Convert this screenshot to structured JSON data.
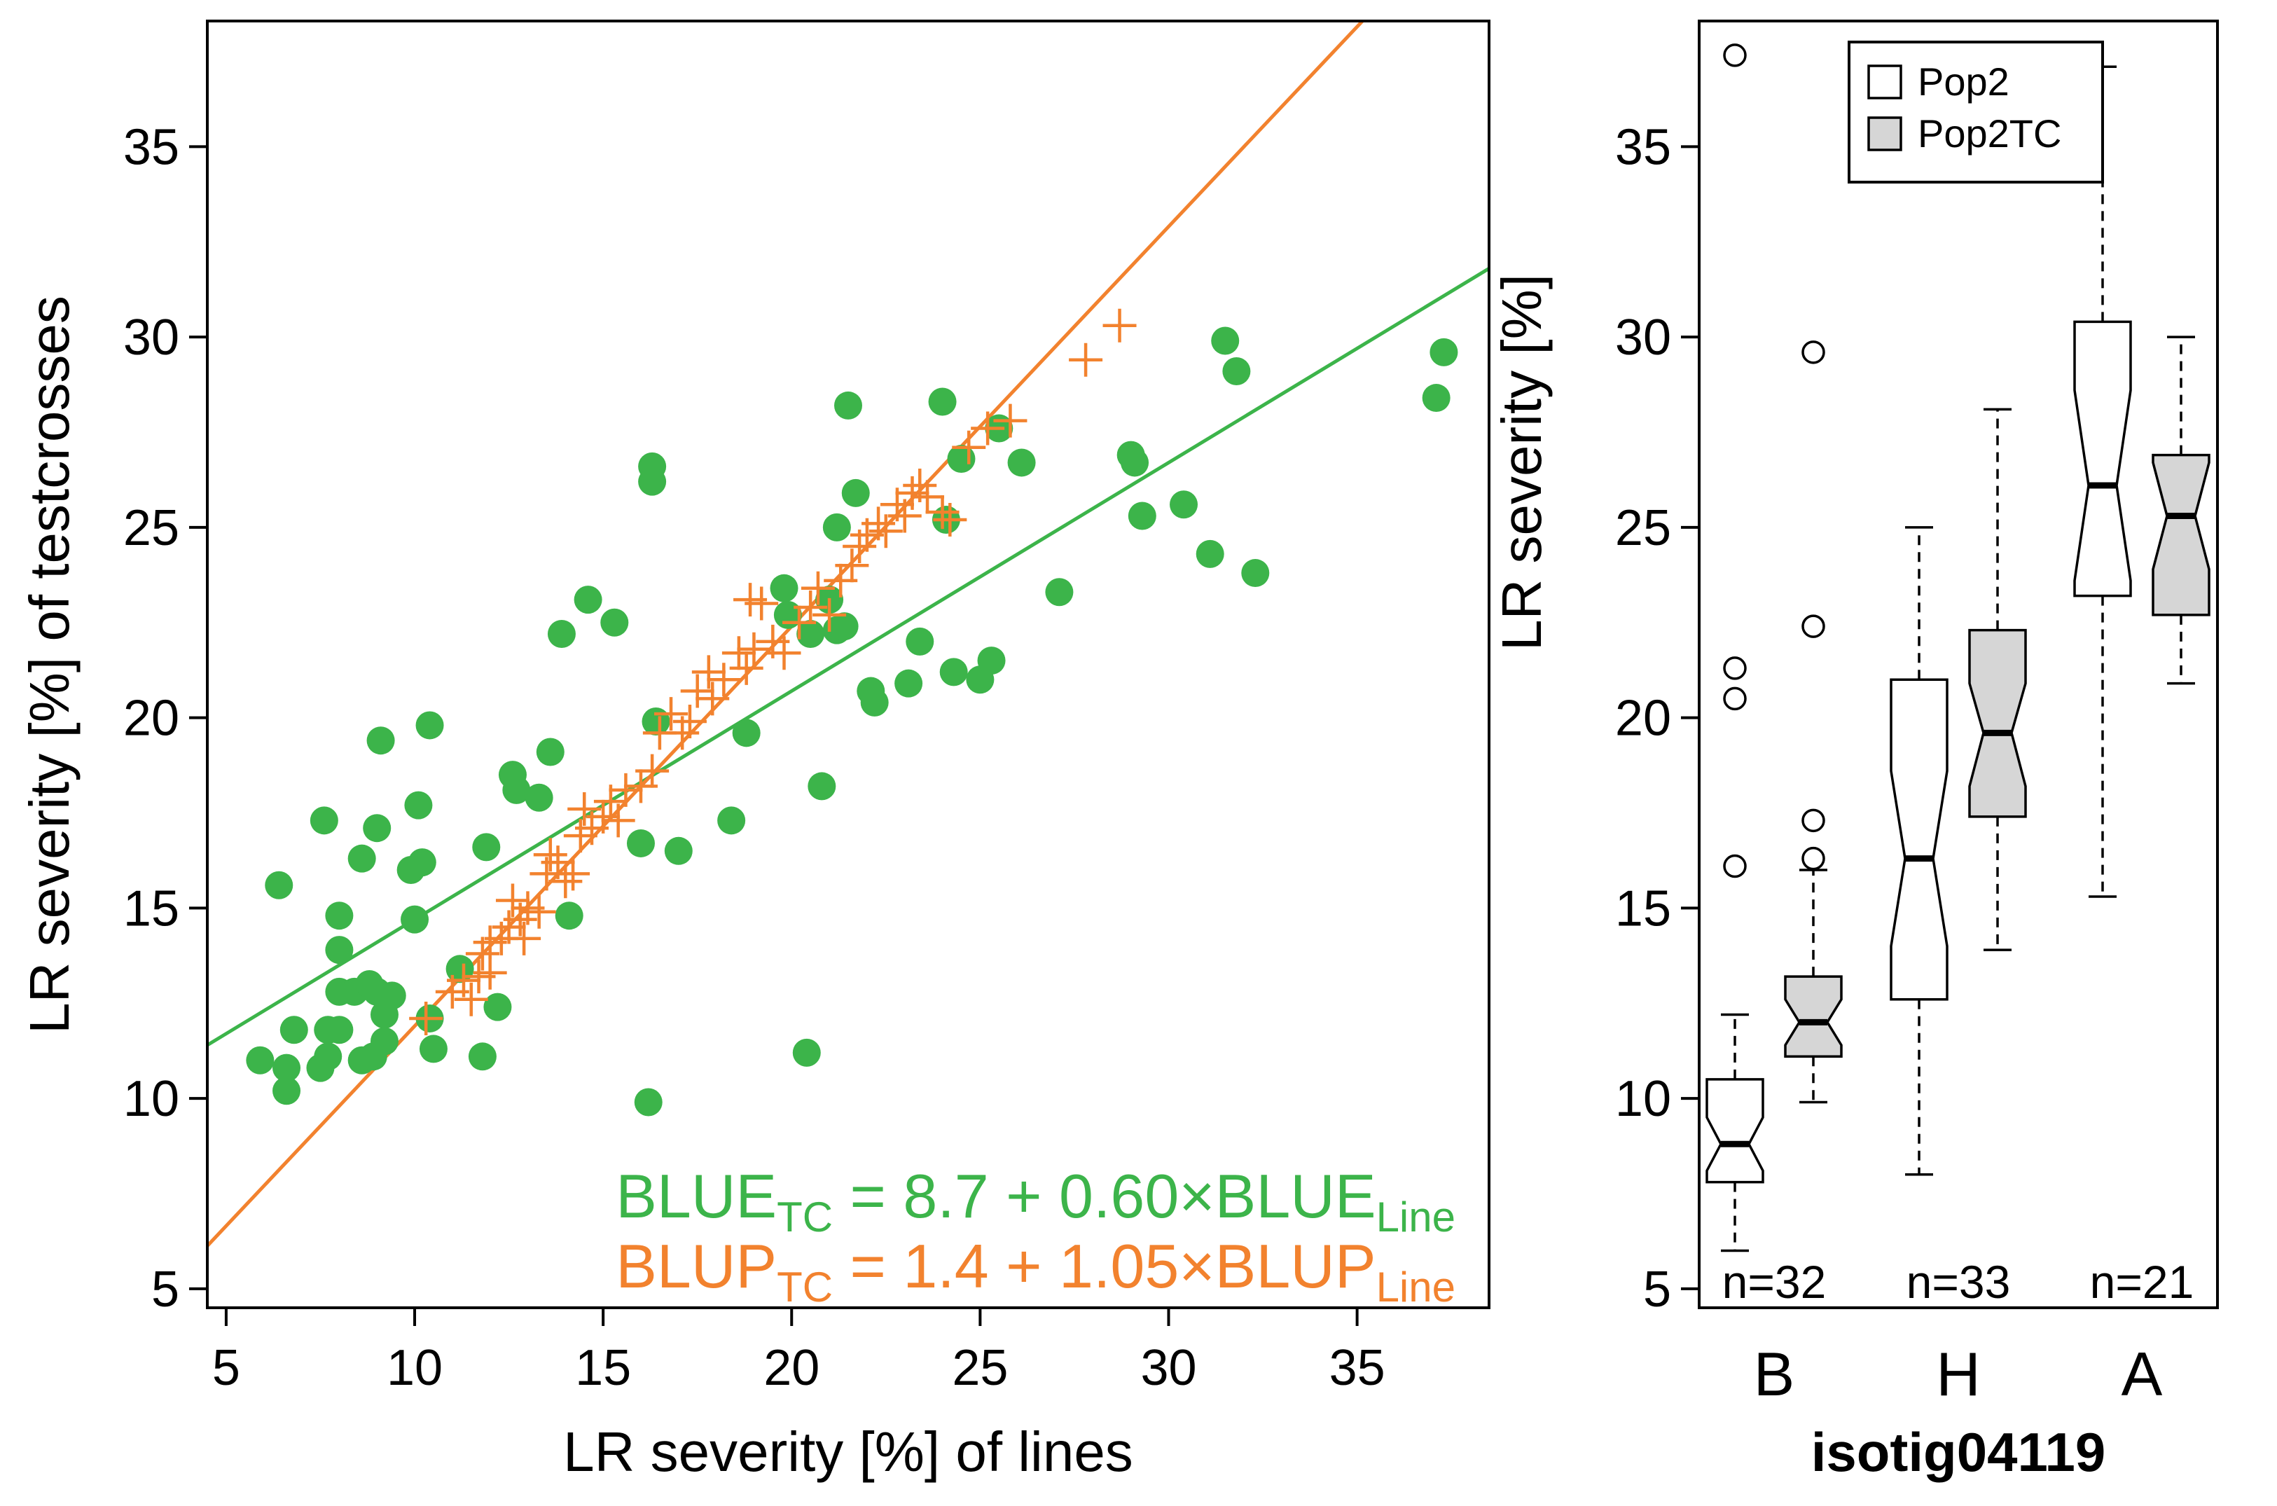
{
  "colors": {
    "blue_line": "#3cb44a",
    "blup_line": "#f2822e",
    "box_pop2": "#ffffff",
    "box_pop2tc": "#d6d6d6",
    "axis": "#000000"
  },
  "chart_data": [
    {
      "type": "scatter",
      "title": "",
      "xlabel": "LR severity [%] of lines",
      "ylabel": "LR severity [%] of testcrosses",
      "xlim": [
        4.5,
        38.5
      ],
      "ylim": [
        4.5,
        38.3
      ],
      "xticks": [
        5,
        10,
        15,
        20,
        25,
        30,
        35
      ],
      "yticks": [
        5,
        10,
        15,
        20,
        25,
        30,
        35
      ],
      "xtick_labels": [
        "5",
        "10",
        "15",
        "20",
        "25",
        "30",
        "35"
      ],
      "ytick_labels": [
        "5",
        "10",
        "15",
        "20",
        "25",
        "30",
        "35"
      ],
      "series": [
        {
          "name": "BLUE",
          "marker": "filled-circle",
          "color": "#3cb44a",
          "points": [
            [
              5.9,
              11.0
            ],
            [
              6.6,
              10.8
            ],
            [
              6.6,
              10.2
            ],
            [
              6.8,
              11.8
            ],
            [
              6.4,
              15.6
            ],
            [
              7.5,
              10.8
            ],
            [
              7.7,
              11.8
            ],
            [
              7.6,
              17.3
            ],
            [
              7.7,
              11.1
            ],
            [
              8.0,
              11.8
            ],
            [
              8.0,
              12.8
            ],
            [
              8.0,
              13.9
            ],
            [
              8.0,
              14.8
            ],
            [
              8.4,
              12.8
            ],
            [
              8.6,
              11.0
            ],
            [
              8.6,
              16.3
            ],
            [
              8.8,
              13.0
            ],
            [
              8.9,
              11.1
            ],
            [
              9.0,
              12.8
            ],
            [
              9.0,
              17.1
            ],
            [
              9.1,
              19.4
            ],
            [
              9.2,
              12.2
            ],
            [
              9.2,
              11.5
            ],
            [
              9.4,
              12.7
            ],
            [
              9.9,
              16.0
            ],
            [
              10.0,
              14.7
            ],
            [
              10.1,
              17.7
            ],
            [
              10.2,
              16.2
            ],
            [
              10.4,
              19.8
            ],
            [
              10.4,
              12.1
            ],
            [
              10.5,
              11.3
            ],
            [
              11.2,
              13.4
            ],
            [
              11.8,
              11.1
            ],
            [
              11.9,
              16.6
            ],
            [
              12.2,
              12.4
            ],
            [
              12.6,
              18.5
            ],
            [
              12.7,
              18.1
            ],
            [
              13.3,
              17.9
            ],
            [
              13.6,
              19.1
            ],
            [
              13.9,
              22.2
            ],
            [
              14.1,
              14.8
            ],
            [
              14.6,
              23.1
            ],
            [
              15.3,
              22.5
            ],
            [
              16.0,
              16.7
            ],
            [
              16.2,
              9.9
            ],
            [
              16.3,
              26.6
            ],
            [
              16.3,
              26.2
            ],
            [
              16.4,
              19.9
            ],
            [
              17.0,
              16.5
            ],
            [
              18.4,
              17.3
            ],
            [
              18.8,
              19.6
            ],
            [
              19.8,
              23.4
            ],
            [
              19.9,
              22.7
            ],
            [
              20.4,
              11.2
            ],
            [
              20.5,
              22.2
            ],
            [
              20.8,
              18.2
            ],
            [
              21.0,
              23.1
            ],
            [
              21.2,
              22.3
            ],
            [
              21.2,
              25.0
            ],
            [
              21.4,
              22.4
            ],
            [
              21.5,
              28.2
            ],
            [
              21.7,
              25.9
            ],
            [
              22.1,
              20.7
            ],
            [
              22.2,
              20.4
            ],
            [
              23.1,
              20.9
            ],
            [
              23.4,
              22.0
            ],
            [
              24.0,
              28.3
            ],
            [
              24.1,
              25.2
            ],
            [
              24.3,
              21.2
            ],
            [
              24.5,
              26.8
            ],
            [
              25.0,
              21.0
            ],
            [
              25.3,
              21.5
            ],
            [
              25.5,
              27.6
            ],
            [
              26.1,
              26.7
            ],
            [
              27.1,
              23.3
            ],
            [
              29.0,
              26.9
            ],
            [
              29.1,
              26.7
            ],
            [
              29.3,
              25.3
            ],
            [
              30.4,
              25.6
            ],
            [
              31.1,
              24.3
            ],
            [
              31.5,
              29.9
            ],
            [
              31.8,
              29.1
            ],
            [
              32.3,
              23.8
            ],
            [
              37.1,
              28.4
            ],
            [
              37.3,
              29.6
            ]
          ]
        },
        {
          "name": "BLUP",
          "marker": "plus",
          "color": "#f2822e",
          "points": [
            [
              10.3,
              12.1
            ],
            [
              11.0,
              12.8
            ],
            [
              11.3,
              13.1
            ],
            [
              11.5,
              12.6
            ],
            [
              11.7,
              13.2
            ],
            [
              11.8,
              13.8
            ],
            [
              12.0,
              14.1
            ],
            [
              12.0,
              13.3
            ],
            [
              12.3,
              14.2
            ],
            [
              12.5,
              14.5
            ],
            [
              12.6,
              15.2
            ],
            [
              12.8,
              14.7
            ],
            [
              12.9,
              14.2
            ],
            [
              13.0,
              15.0
            ],
            [
              13.3,
              14.9
            ],
            [
              13.5,
              15.9
            ],
            [
              13.6,
              16.4
            ],
            [
              13.8,
              16.2
            ],
            [
              14.0,
              15.7
            ],
            [
              14.2,
              15.9
            ],
            [
              14.4,
              16.9
            ],
            [
              14.5,
              17.6
            ],
            [
              14.7,
              17.1
            ],
            [
              15.0,
              17.4
            ],
            [
              15.2,
              17.8
            ],
            [
              15.4,
              17.3
            ],
            [
              15.6,
              18.1
            ],
            [
              16.0,
              18.2
            ],
            [
              16.3,
              18.6
            ],
            [
              16.5,
              19.6
            ],
            [
              16.8,
              20.1
            ],
            [
              17.1,
              19.6
            ],
            [
              17.3,
              19.9
            ],
            [
              17.5,
              20.7
            ],
            [
              17.8,
              21.2
            ],
            [
              17.9,
              20.5
            ],
            [
              18.2,
              21.0
            ],
            [
              18.6,
              21.7
            ],
            [
              18.8,
              21.3
            ],
            [
              18.9,
              23.1
            ],
            [
              19.0,
              21.8
            ],
            [
              19.2,
              23.0
            ],
            [
              19.5,
              22.0
            ],
            [
              19.8,
              21.7
            ],
            [
              20.2,
              22.5
            ],
            [
              20.5,
              22.9
            ],
            [
              20.7,
              23.4
            ],
            [
              21.0,
              22.7
            ],
            [
              21.3,
              23.6
            ],
            [
              21.6,
              24.0
            ],
            [
              21.8,
              24.5
            ],
            [
              22.0,
              24.8
            ],
            [
              22.3,
              25.1
            ],
            [
              22.5,
              24.9
            ],
            [
              22.8,
              25.6
            ],
            [
              23.0,
              25.3
            ],
            [
              23.2,
              25.9
            ],
            [
              23.4,
              26.1
            ],
            [
              23.6,
              25.8
            ],
            [
              24.0,
              25.4
            ],
            [
              24.2,
              25.2
            ],
            [
              24.7,
              27.1
            ],
            [
              25.2,
              27.6
            ],
            [
              25.8,
              27.8
            ],
            [
              27.8,
              29.4
            ],
            [
              28.7,
              30.3
            ]
          ]
        }
      ],
      "fit_lines": [
        {
          "name": "BLUE",
          "intercept": 8.7,
          "slope": 0.6,
          "color": "#3cb44a"
        },
        {
          "name": "BLUP",
          "intercept": 1.4,
          "slope": 1.05,
          "color": "#f2822e"
        }
      ],
      "annotations": [
        {
          "prefix": "BLUE",
          "sub_left": "TC",
          "mid": " = 8.7 + 0.60×BLUE",
          "sub_right": "Line",
          "color": "#3cb44a"
        },
        {
          "prefix": "BLUP",
          "sub_left": "TC",
          "mid": " = 1.4 + 1.05×BLUP",
          "sub_right": "Line",
          "color": "#f2822e"
        }
      ]
    },
    {
      "type": "box",
      "title": "",
      "xlabel": "isotig04119",
      "ylabel": "LR severity [%]",
      "ylim": [
        4.5,
        38.3
      ],
      "yticks": [
        5,
        10,
        15,
        20,
        25,
        30,
        35
      ],
      "ytick_labels": [
        "5",
        "10",
        "15",
        "20",
        "25",
        "30",
        "35"
      ],
      "categories": [
        "B",
        "H",
        "A"
      ],
      "counts": [
        "n=32",
        "n=33",
        "n=21"
      ],
      "legend": {
        "position": "top",
        "entries": [
          {
            "label": "Pop2",
            "fill": "#ffffff"
          },
          {
            "label": "Pop2TC",
            "fill": "#d6d6d6"
          }
        ]
      },
      "boxes": [
        {
          "category": "B",
          "group": "Pop2",
          "fill": "#ffffff",
          "whisker_low": 6.0,
          "q1": 7.8,
          "median": 8.8,
          "q3": 10.5,
          "whisker_high": 12.2,
          "notch_low": 8.1,
          "notch_high": 9.5,
          "outliers": [
            16.1,
            20.5,
            21.3,
            37.4
          ]
        },
        {
          "category": "B",
          "group": "Pop2TC",
          "fill": "#d6d6d6",
          "whisker_low": 9.9,
          "q1": 11.1,
          "median": 12.0,
          "q3": 13.2,
          "whisker_high": 16.0,
          "notch_low": 11.4,
          "notch_high": 12.6,
          "outliers": [
            16.3,
            17.3,
            22.4,
            29.6
          ]
        },
        {
          "category": "H",
          "group": "Pop2",
          "fill": "#ffffff",
          "whisker_low": 8.0,
          "q1": 12.6,
          "median": 16.3,
          "q3": 21.0,
          "whisker_high": 25.0,
          "notch_low": 14.0,
          "notch_high": 18.6,
          "outliers": []
        },
        {
          "category": "H",
          "group": "Pop2TC",
          "fill": "#d6d6d6",
          "whisker_low": 13.9,
          "q1": 17.4,
          "median": 19.6,
          "q3": 22.3,
          "whisker_high": 28.1,
          "notch_low": 18.2,
          "notch_high": 20.9,
          "outliers": []
        },
        {
          "category": "A",
          "group": "Pop2",
          "fill": "#ffffff",
          "whisker_low": 15.3,
          "q1": 23.2,
          "median": 26.1,
          "q3": 30.4,
          "whisker_high": 37.1,
          "notch_low": 23.6,
          "notch_high": 28.6,
          "outliers": []
        },
        {
          "category": "A",
          "group": "Pop2TC",
          "fill": "#d6d6d6",
          "whisker_low": 20.9,
          "q1": 22.7,
          "median": 25.3,
          "q3": 26.9,
          "whisker_high": 30.0,
          "notch_low": 23.9,
          "notch_high": 26.7,
          "outliers": []
        }
      ]
    }
  ]
}
